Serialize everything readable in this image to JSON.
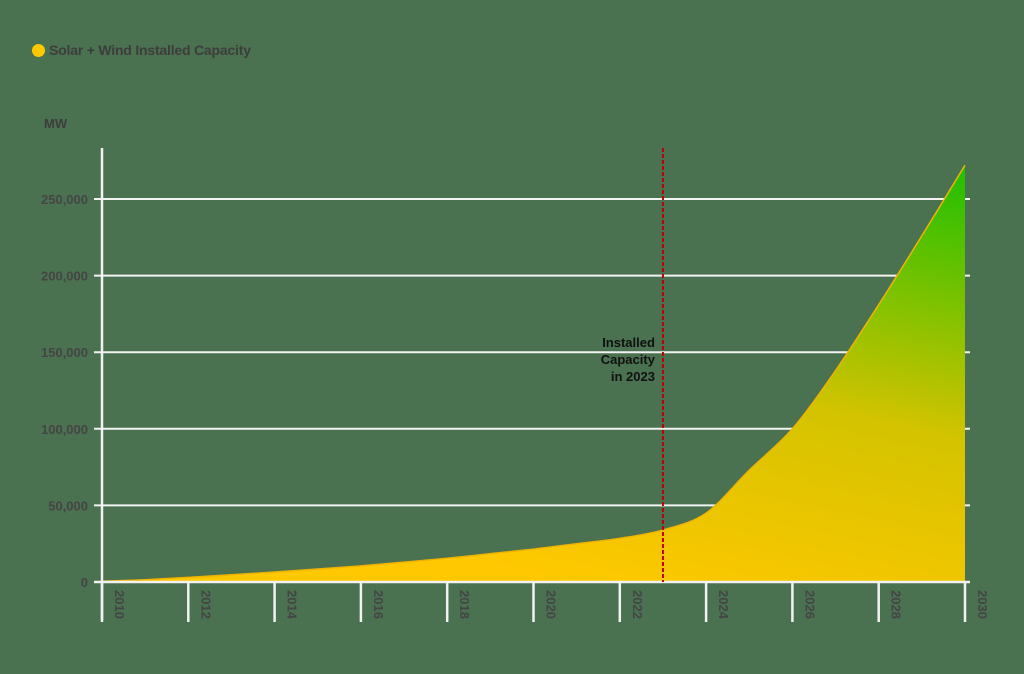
{
  "legend": {
    "label": "Solar + Wind Installed Capacity",
    "color": "#ffc800"
  },
  "y_unit": "MW",
  "annotation": {
    "lines": [
      "Installed",
      "Capacity",
      "in 2023"
    ],
    "x_year": 2023,
    "color": "#c00000"
  },
  "colors": {
    "background": "#4a7150",
    "grid": "#f2f2f2",
    "area_start": "#ffc800",
    "area_end": "#1ec000",
    "text": "#454545"
  },
  "y_ticks": [
    "0",
    "50,000",
    "100,000",
    "150,000",
    "200,000",
    "250,000"
  ],
  "x_ticks": [
    "2010",
    "2012",
    "2014",
    "2016",
    "2018",
    "2020",
    "2022",
    "2024",
    "2026",
    "2028",
    "2030"
  ],
  "chart_data": {
    "type": "area",
    "title": "",
    "legend": [
      "Solar + Wind Installed Capacity"
    ],
    "legend_position": "top-left",
    "xlabel": "",
    "ylabel": "MW",
    "x": [
      2010,
      2011,
      2012,
      2013,
      2014,
      2015,
      2016,
      2017,
      2018,
      2019,
      2020,
      2021,
      2022,
      2023,
      2024,
      2025,
      2026,
      2027,
      2028,
      2029,
      2030
    ],
    "series": [
      {
        "name": "Solar + Wind Installed Capacity",
        "values": [
          500,
          1500,
          3000,
          4700,
          6500,
          8500,
          10500,
          13000,
          15500,
          18500,
          21500,
          25000,
          28500,
          34000,
          45000,
          73000,
          100000,
          138000,
          181000,
          226000,
          272000
        ]
      }
    ],
    "ylim": [
      0,
      280000
    ],
    "xlim": [
      2010,
      2030
    ],
    "y_ticks": [
      0,
      50000,
      100000,
      150000,
      200000,
      250000
    ],
    "x_ticks": [
      2010,
      2012,
      2014,
      2016,
      2018,
      2020,
      2022,
      2024,
      2026,
      2028,
      2030
    ],
    "grid": "horizontal",
    "annotations": [
      {
        "type": "vertical-dashed-line",
        "x": 2023,
        "text": "Installed Capacity in 2023"
      }
    ]
  }
}
